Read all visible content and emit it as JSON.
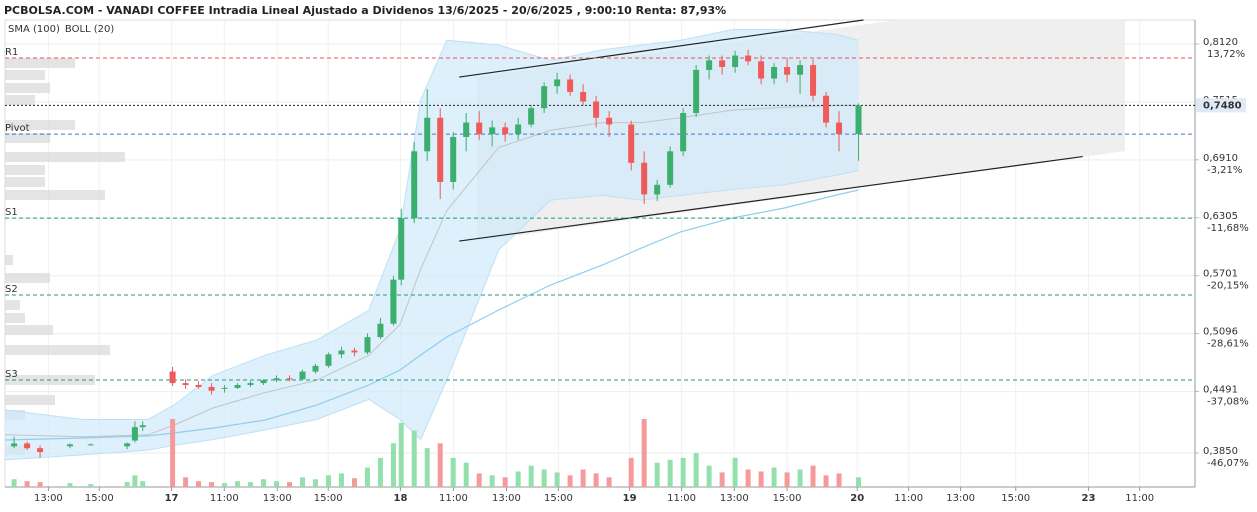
{
  "chart_data": {
    "type": "candlestick",
    "title": "PCBOLSA.COM - VANADI COFFEE Intradia Lineal Ajustado a Dividenos 13/6/2025 - 20/6/2025 , 9:00:10 Renta: 87,93%",
    "ylim": [
      0.3495,
      0.8371
    ],
    "yticks": [
      {
        "value": 0.812,
        "label": "0,8120"
      },
      {
        "value": 0.7515,
        "label": "0,7515"
      },
      {
        "value": 0.691,
        "label": "0,6910"
      },
      {
        "value": 0.6305,
        "label": "0,6305"
      },
      {
        "value": 0.5701,
        "label": "0,5701"
      },
      {
        "value": 0.5096,
        "label": "0,5096"
      },
      {
        "value": 0.4491,
        "label": "0,4491"
      },
      {
        "value": 0.385,
        "label": "0,3850"
      }
    ],
    "y2lim": [
      -51.05,
      17.24
    ],
    "y2ticks": [
      {
        "value": 13.72,
        "label": "13,72%"
      },
      {
        "value": -3.21,
        "label": "-3,21%"
      },
      {
        "value": -11.68,
        "label": "-11,68%"
      },
      {
        "value": -20.15,
        "label": "-20,15%"
      },
      {
        "value": -28.61,
        "label": "-28,61%"
      },
      {
        "value": -37.08,
        "label": "-37,08%"
      },
      {
        "value": -46.07,
        "label": "-46,07%"
      }
    ],
    "xlim": [
      0,
      45.8
    ],
    "xticks": [
      {
        "value": 1.67,
        "label": "13:00"
      },
      {
        "value": 3.63,
        "label": "15:00"
      },
      {
        "value": 6.41,
        "label": "17"
      },
      {
        "value": 8.44,
        "label": "11:00"
      },
      {
        "value": 10.48,
        "label": "13:00"
      },
      {
        "value": 12.44,
        "label": "15:00"
      },
      {
        "value": 15.22,
        "label": "18"
      },
      {
        "value": 17.26,
        "label": "11:00"
      },
      {
        "value": 19.3,
        "label": "13:00"
      },
      {
        "value": 21.3,
        "label": "15:00"
      },
      {
        "value": 24.04,
        "label": "19"
      },
      {
        "value": 26.04,
        "label": "11:00"
      },
      {
        "value": 28.07,
        "label": "13:00"
      },
      {
        "value": 30.1,
        "label": "15:00"
      },
      {
        "value": 32.8,
        "label": "20"
      },
      {
        "value": 34.78,
        "label": "11:00"
      },
      {
        "value": 36.78,
        "label": "13:00"
      },
      {
        "value": 38.9,
        "label": "15:00"
      },
      {
        "value": 41.7,
        "label": "23"
      },
      {
        "value": 43.67,
        "label": "11:00"
      }
    ],
    "grid": true,
    "up_color": "#3cae6e",
    "down_color": "#ef5a5a",
    "up_volume_color": "#93e0ad",
    "down_volume_color": "#f49a9a",
    "candles": {
      "x": [
        0.35,
        0.85,
        1.35,
        2.5,
        3.3,
        4.7,
        5.0,
        5.3,
        6.45,
        6.95,
        7.45,
        7.95,
        8.45,
        8.95,
        9.45,
        9.95,
        10.45,
        10.95,
        11.45,
        11.95,
        12.45,
        12.95,
        13.45,
        13.95,
        14.45,
        14.95,
        15.25,
        15.75,
        16.25,
        16.75,
        17.25,
        17.75,
        18.25,
        18.75,
        19.25,
        19.75,
        20.25,
        20.75,
        21.25,
        21.75,
        22.25,
        22.75,
        23.25,
        24.1,
        24.6,
        25.1,
        25.6,
        26.1,
        26.6,
        27.1,
        27.6,
        28.1,
        28.6,
        29.1,
        29.6,
        30.1,
        30.6,
        31.1,
        31.6,
        32.1,
        32.85
      ],
      "open": [
        0.392,
        0.395,
        0.39,
        0.392,
        0.394,
        0.392,
        0.398,
        0.412,
        0.47,
        0.458,
        0.456,
        0.454,
        0.452,
        0.453,
        0.456,
        0.458,
        0.461,
        0.463,
        0.462,
        0.47,
        0.476,
        0.488,
        0.492,
        0.49,
        0.506,
        0.52,
        0.566,
        0.63,
        0.7,
        0.735,
        0.668,
        0.715,
        0.73,
        0.718,
        0.725,
        0.718,
        0.728,
        0.745,
        0.768,
        0.775,
        0.762,
        0.752,
        0.735,
        0.728,
        0.688,
        0.655,
        0.665,
        0.7,
        0.74,
        0.785,
        0.795,
        0.788,
        0.8,
        0.794,
        0.776,
        0.788,
        0.78,
        0.79,
        0.758,
        0.73,
        0.718
      ],
      "high": [
        0.402,
        0.397,
        0.393,
        0.395,
        0.395,
        0.396,
        0.418,
        0.418,
        0.475,
        0.462,
        0.46,
        0.458,
        0.456,
        0.458,
        0.46,
        0.462,
        0.466,
        0.466,
        0.472,
        0.478,
        0.49,
        0.496,
        0.495,
        0.51,
        0.526,
        0.57,
        0.64,
        0.71,
        0.765,
        0.745,
        0.72,
        0.74,
        0.742,
        0.732,
        0.73,
        0.735,
        0.748,
        0.772,
        0.782,
        0.78,
        0.77,
        0.758,
        0.742,
        0.732,
        0.7,
        0.67,
        0.705,
        0.745,
        0.79,
        0.8,
        0.8,
        0.805,
        0.806,
        0.8,
        0.792,
        0.798,
        0.795,
        0.796,
        0.762,
        0.742,
        0.75
      ],
      "low": [
        0.39,
        0.388,
        0.38,
        0.39,
        0.393,
        0.389,
        0.396,
        0.408,
        0.455,
        0.452,
        0.452,
        0.446,
        0.448,
        0.452,
        0.454,
        0.456,
        0.459,
        0.46,
        0.461,
        0.468,
        0.474,
        0.484,
        0.486,
        0.488,
        0.504,
        0.518,
        0.56,
        0.625,
        0.69,
        0.65,
        0.66,
        0.7,
        0.712,
        0.705,
        0.71,
        0.712,
        0.725,
        0.74,
        0.76,
        0.758,
        0.748,
        0.725,
        0.715,
        0.68,
        0.645,
        0.648,
        0.662,
        0.695,
        0.736,
        0.775,
        0.78,
        0.782,
        0.79,
        0.77,
        0.77,
        0.772,
        0.76,
        0.752,
        0.725,
        0.7,
        0.69
      ],
      "close": [
        0.395,
        0.39,
        0.386,
        0.394,
        0.394,
        0.395,
        0.412,
        0.414,
        0.458,
        0.456,
        0.454,
        0.45,
        0.453,
        0.456,
        0.458,
        0.461,
        0.463,
        0.462,
        0.47,
        0.476,
        0.488,
        0.492,
        0.49,
        0.506,
        0.52,
        0.566,
        0.63,
        0.7,
        0.735,
        0.668,
        0.715,
        0.73,
        0.718,
        0.725,
        0.718,
        0.728,
        0.745,
        0.768,
        0.775,
        0.762,
        0.752,
        0.735,
        0.728,
        0.688,
        0.655,
        0.665,
        0.7,
        0.74,
        0.785,
        0.795,
        0.788,
        0.8,
        0.794,
        0.776,
        0.788,
        0.78,
        0.79,
        0.758,
        0.73,
        0.718,
        0.748
      ],
      "volume": [
        8,
        6,
        5,
        4,
        3,
        5,
        12,
        6,
        70,
        10,
        6,
        5,
        4,
        6,
        5,
        8,
        6,
        5,
        10,
        8,
        12,
        14,
        9,
        20,
        30,
        45,
        66,
        58,
        40,
        45,
        30,
        25,
        14,
        12,
        10,
        16,
        22,
        18,
        15,
        12,
        18,
        14,
        10,
        30,
        70,
        25,
        28,
        30,
        35,
        22,
        15,
        30,
        18,
        16,
        20,
        15,
        18,
        22,
        12,
        14,
        10
      ]
    },
    "indicators": {
      "x": [
        0,
        3,
        5.5,
        6.5,
        8,
        10,
        12,
        14,
        15.2,
        16,
        17,
        19,
        21,
        23,
        24.5,
        26,
        28,
        30,
        32,
        32.85
      ],
      "series": [
        {
          "name": "SMA (100)",
          "color": "#8fcdef",
          "values": [
            0.3986,
            0.4007,
            0.4028,
            0.4059,
            0.411,
            0.4194,
            0.4351,
            0.456,
            0.4716,
            0.4873,
            0.5061,
            0.5343,
            0.5604,
            0.5813,
            0.5991,
            0.6158,
            0.6304,
            0.6408,
            0.6544,
            0.6596
          ]
        },
        {
          "name": "BOLL (20)",
          "color": "#c4c4c4",
          "values": [
            0.404,
            0.402,
            0.404,
            0.414,
            0.432,
            0.448,
            0.461,
            0.487,
            0.519,
            0.577,
            0.638,
            0.704,
            0.722,
            0.73,
            0.73,
            0.735,
            0.743,
            0.746,
            0.748,
            0.748
          ],
          "upper": [
            0.43,
            0.42,
            0.42,
            0.435,
            0.466,
            0.487,
            0.503,
            0.534,
            0.618,
            0.754,
            0.816,
            0.811,
            0.795,
            0.806,
            0.811,
            0.816,
            0.827,
            0.827,
            0.822,
            0.816
          ],
          "lower": [
            0.378,
            0.383,
            0.388,
            0.393,
            0.399,
            0.409,
            0.42,
            0.441,
            0.42,
            0.399,
            0.461,
            0.597,
            0.649,
            0.654,
            0.649,
            0.654,
            0.66,
            0.665,
            0.675,
            0.68
          ]
        }
      ]
    },
    "levels": [
      {
        "name": "R1",
        "value": 0.7974,
        "color": "#e05a5a"
      },
      {
        "name": "Pivot",
        "value": 0.718,
        "color": "#3a7bd5"
      },
      {
        "name": "S1",
        "value": 0.6303,
        "color": "#1f9a7a"
      },
      {
        "name": "S2",
        "value": 0.55,
        "color": "#1f9a7a"
      },
      {
        "name": "S3",
        "value": 0.4612,
        "color": "#1f9a7a"
      }
    ],
    "last_price": {
      "value": 0.748,
      "label": "0,7480"
    },
    "channels": [
      {
        "x": [
          17.48,
          33.04
        ],
        "y": [
          0.7775,
          0.8371
        ]
      },
      {
        "x": [
          17.48,
          41.48
        ],
        "y": [
          0.6063,
          0.6945
        ]
      }
    ],
    "volume_profile": {
      "prices": [
        0.7922,
        0.7797,
        0.7661,
        0.7536,
        0.7275,
        0.7139,
        0.6941,
        0.6805,
        0.668,
        0.6544,
        0.5865,
        0.5677,
        0.5395,
        0.526,
        0.5134,
        0.4925,
        0.4612,
        0.4403,
        0.4247,
        0.3881
      ],
      "values": [
        70,
        40,
        45,
        30,
        70,
        45,
        120,
        40,
        40,
        100,
        8,
        45,
        15,
        20,
        48,
        105,
        90,
        50,
        20,
        20
      ]
    }
  }
}
